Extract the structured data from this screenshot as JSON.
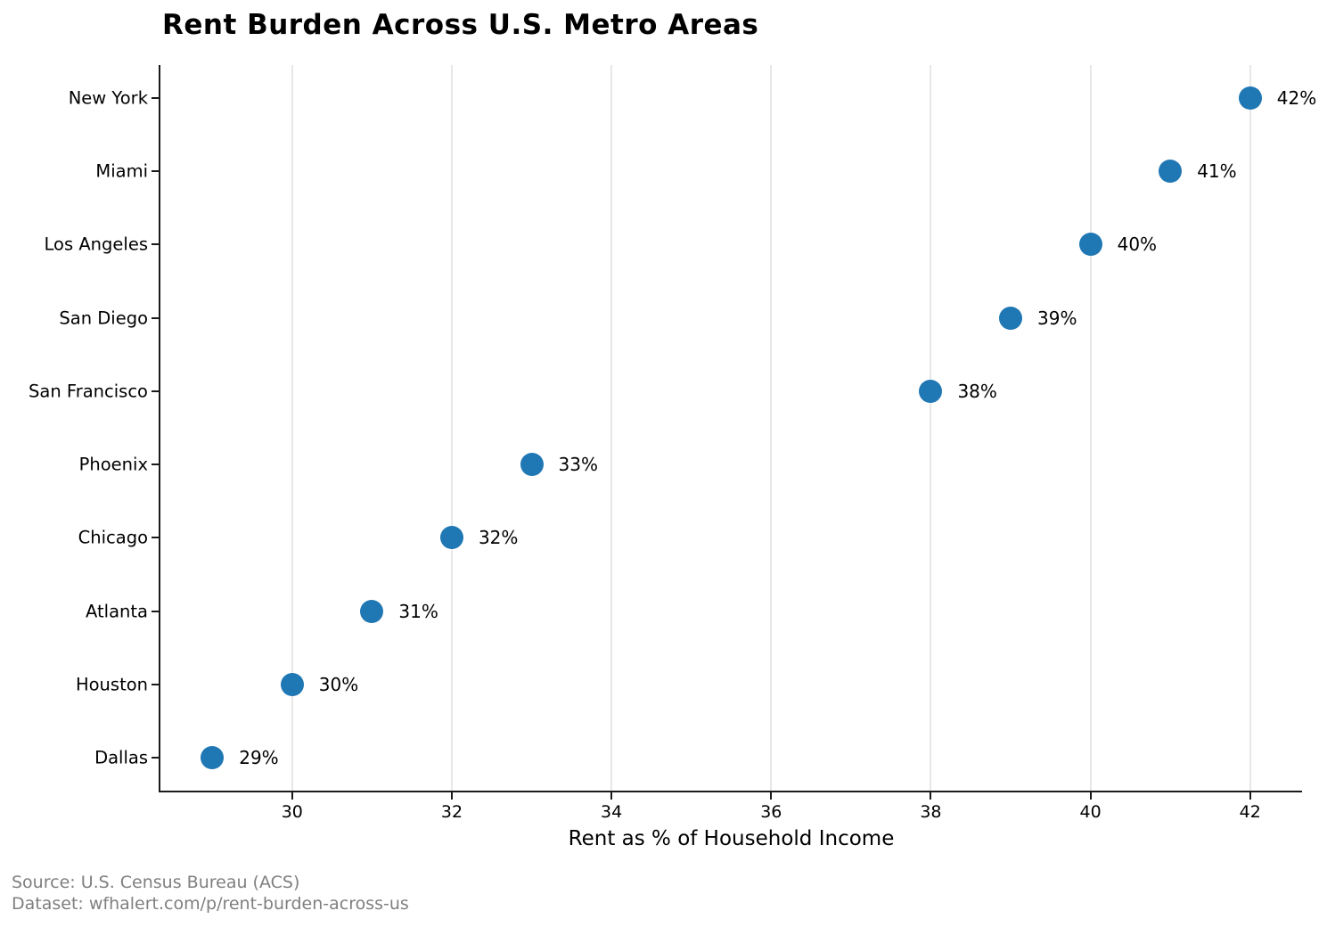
{
  "title": "Rent Burden Across U.S. Metro Areas",
  "footer": {
    "source": "Source: U.S. Census Bureau (ACS)",
    "dataset": "Dataset: wfhalert.com/p/rent-burden-across-us"
  },
  "chart_data": {
    "type": "scatter",
    "variant": "horizontal-dot-plot",
    "title": "Rent Burden Across U.S. Metro Areas",
    "xlabel": "Rent as % of Household Income",
    "ylabel": "",
    "categories": [
      "New York",
      "Miami",
      "Los Angeles",
      "San Diego",
      "San Francisco",
      "Phoenix",
      "Chicago",
      "Atlanta",
      "Houston",
      "Dallas"
    ],
    "values": [
      42,
      41,
      40,
      39,
      38,
      33,
      32,
      31,
      30,
      29
    ],
    "point_labels": [
      "42%",
      "41%",
      "40%",
      "39%",
      "38%",
      "33%",
      "32%",
      "31%",
      "30%",
      "29%"
    ],
    "xticks": [
      30,
      32,
      34,
      36,
      38,
      40,
      42
    ],
    "xlim": [
      28.35,
      42.65
    ],
    "grid": "vertical-only",
    "legend": "none",
    "marker_color": "#1f77b4",
    "grid_color": "#e7e7e7",
    "spine_color": "#1a1a1a",
    "footer_color": "#7f7f7f"
  }
}
